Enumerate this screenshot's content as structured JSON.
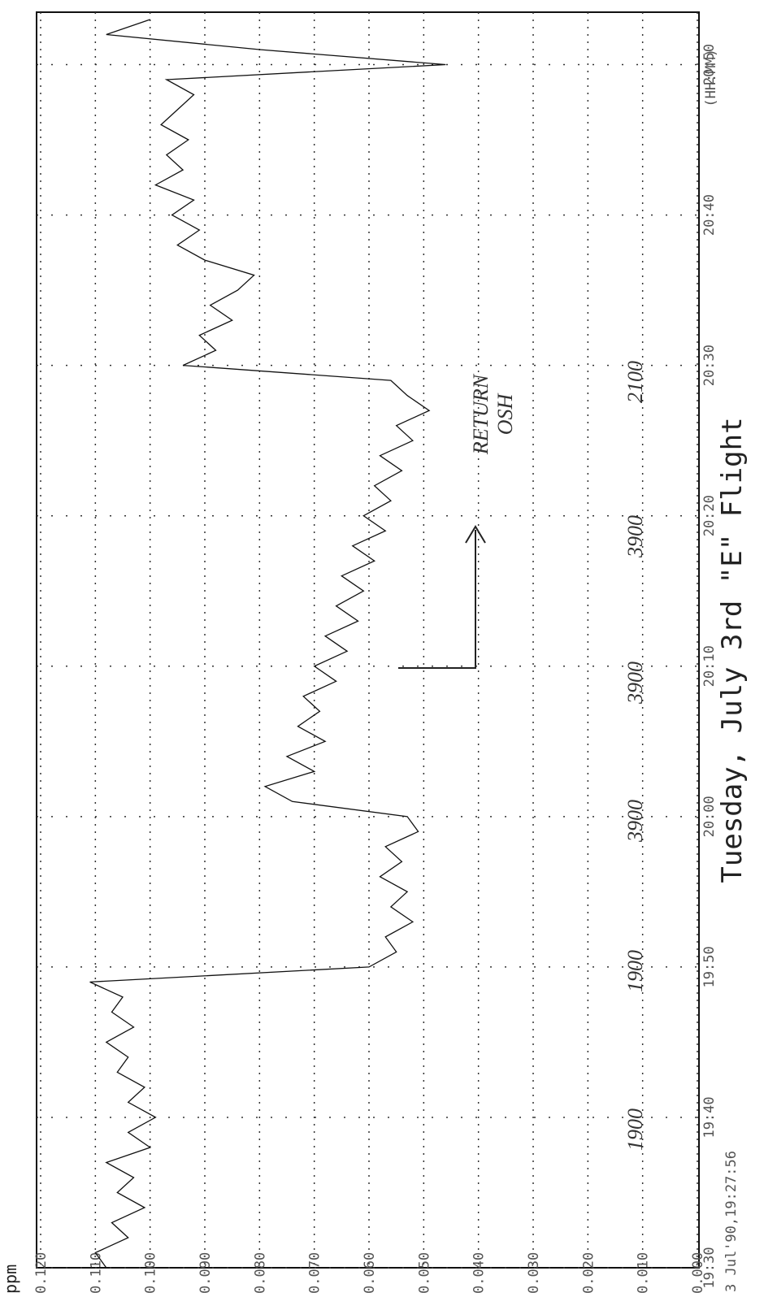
{
  "chart_data": {
    "type": "line",
    "title": "Tuesday, July 3rd \"E\" Flight",
    "x_label": "(HH:MM)",
    "y_label": "ppm",
    "start_stamp": "3 Jul'90,19:27:56",
    "x": [
      "19:30",
      "19:31",
      "19:32",
      "19:33",
      "19:34",
      "19:35",
      "19:36",
      "19:37",
      "19:38",
      "19:39",
      "19:40",
      "19:41",
      "19:42",
      "19:43",
      "19:44",
      "19:45",
      "19:46",
      "19:47",
      "19:48",
      "19:49",
      "19:50",
      "19:51",
      "19:52",
      "19:53",
      "19:54",
      "19:55",
      "19:56",
      "19:57",
      "19:58",
      "19:59",
      "20:00",
      "20:01",
      "20:02",
      "20:03",
      "20:04",
      "20:05",
      "20:06",
      "20:07",
      "20:08",
      "20:09",
      "20:10",
      "20:11",
      "20:12",
      "20:13",
      "20:14",
      "20:15",
      "20:16",
      "20:17",
      "20:18",
      "20:19",
      "20:20",
      "20:21",
      "20:22",
      "20:23",
      "20:24",
      "20:25",
      "20:26",
      "20:27",
      "20:28",
      "20:29",
      "20:30",
      "20:31",
      "20:32",
      "20:33",
      "20:34",
      "20:35",
      "20:36",
      "20:37",
      "20:38",
      "20:39",
      "20:40",
      "20:41",
      "20:42",
      "20:43",
      "20:44",
      "20:45",
      "20:46",
      "20:47",
      "20:48",
      "20:49",
      "20:50",
      "20:51",
      "20:52",
      "20:53"
    ],
    "series": [
      {
        "color": "#111111",
        "values": [
          0.108,
          0.11,
          0.104,
          0.107,
          0.101,
          0.106,
          0.103,
          0.108,
          0.1,
          0.104,
          0.099,
          0.104,
          0.101,
          0.106,
          0.104,
          0.108,
          0.103,
          0.107,
          0.105,
          0.111,
          0.06,
          0.055,
          0.057,
          0.052,
          0.056,
          0.053,
          0.058,
          0.054,
          0.057,
          0.051,
          0.053,
          0.074,
          0.079,
          0.07,
          0.075,
          0.068,
          0.073,
          0.069,
          0.072,
          0.066,
          0.07,
          0.064,
          0.068,
          0.062,
          0.066,
          0.061,
          0.065,
          0.059,
          0.063,
          0.057,
          0.061,
          0.056,
          0.059,
          0.054,
          0.058,
          0.052,
          0.055,
          0.049,
          0.053,
          0.056,
          0.094,
          0.088,
          0.091,
          0.085,
          0.089,
          0.084,
          0.081,
          0.09,
          0.095,
          0.091,
          0.096,
          0.092,
          0.099,
          0.094,
          0.097,
          0.093,
          0.098,
          0.095,
          0.092,
          0.097,
          0.046,
          0.08,
          0.108,
          0.1
        ]
      }
    ],
    "xlim": [
      "19:30",
      "20:53"
    ],
    "xticks": [
      "19:30",
      "19:40",
      "19:50",
      "20:00",
      "20:10",
      "20:20",
      "20:30",
      "20:40",
      "20:50"
    ],
    "ylim": [
      0,
      0.12
    ],
    "yticks": [
      {
        "value": 0.12,
        "label": "0.120"
      },
      {
        "value": 0.11,
        "label": "0.110"
      },
      {
        "value": 0.1,
        "label": "0.100"
      },
      {
        "value": 0.09,
        "label": "0.090"
      },
      {
        "value": 0.08,
        "label": "0.080"
      },
      {
        "value": 0.07,
        "label": "0.070"
      },
      {
        "value": 0.06,
        "label": "0.060"
      },
      {
        "value": 0.05,
        "label": "0.050"
      },
      {
        "value": 0.04,
        "label": "0.040"
      },
      {
        "value": 0.03,
        "label": "0.030"
      },
      {
        "value": 0.02,
        "label": "0.020"
      },
      {
        "value": 0.01,
        "label": "0.010"
      },
      {
        "value": 0,
        "label": "0.000"
      }
    ],
    "grid": true,
    "annotations": [
      {
        "text": "1900"
      },
      {
        "text": "1900"
      },
      {
        "text": "3900"
      },
      {
        "text": "3900"
      },
      {
        "text": "3900"
      },
      {
        "text": "2100"
      },
      {
        "text": "RETURN"
      },
      {
        "text": "OSH"
      }
    ]
  }
}
